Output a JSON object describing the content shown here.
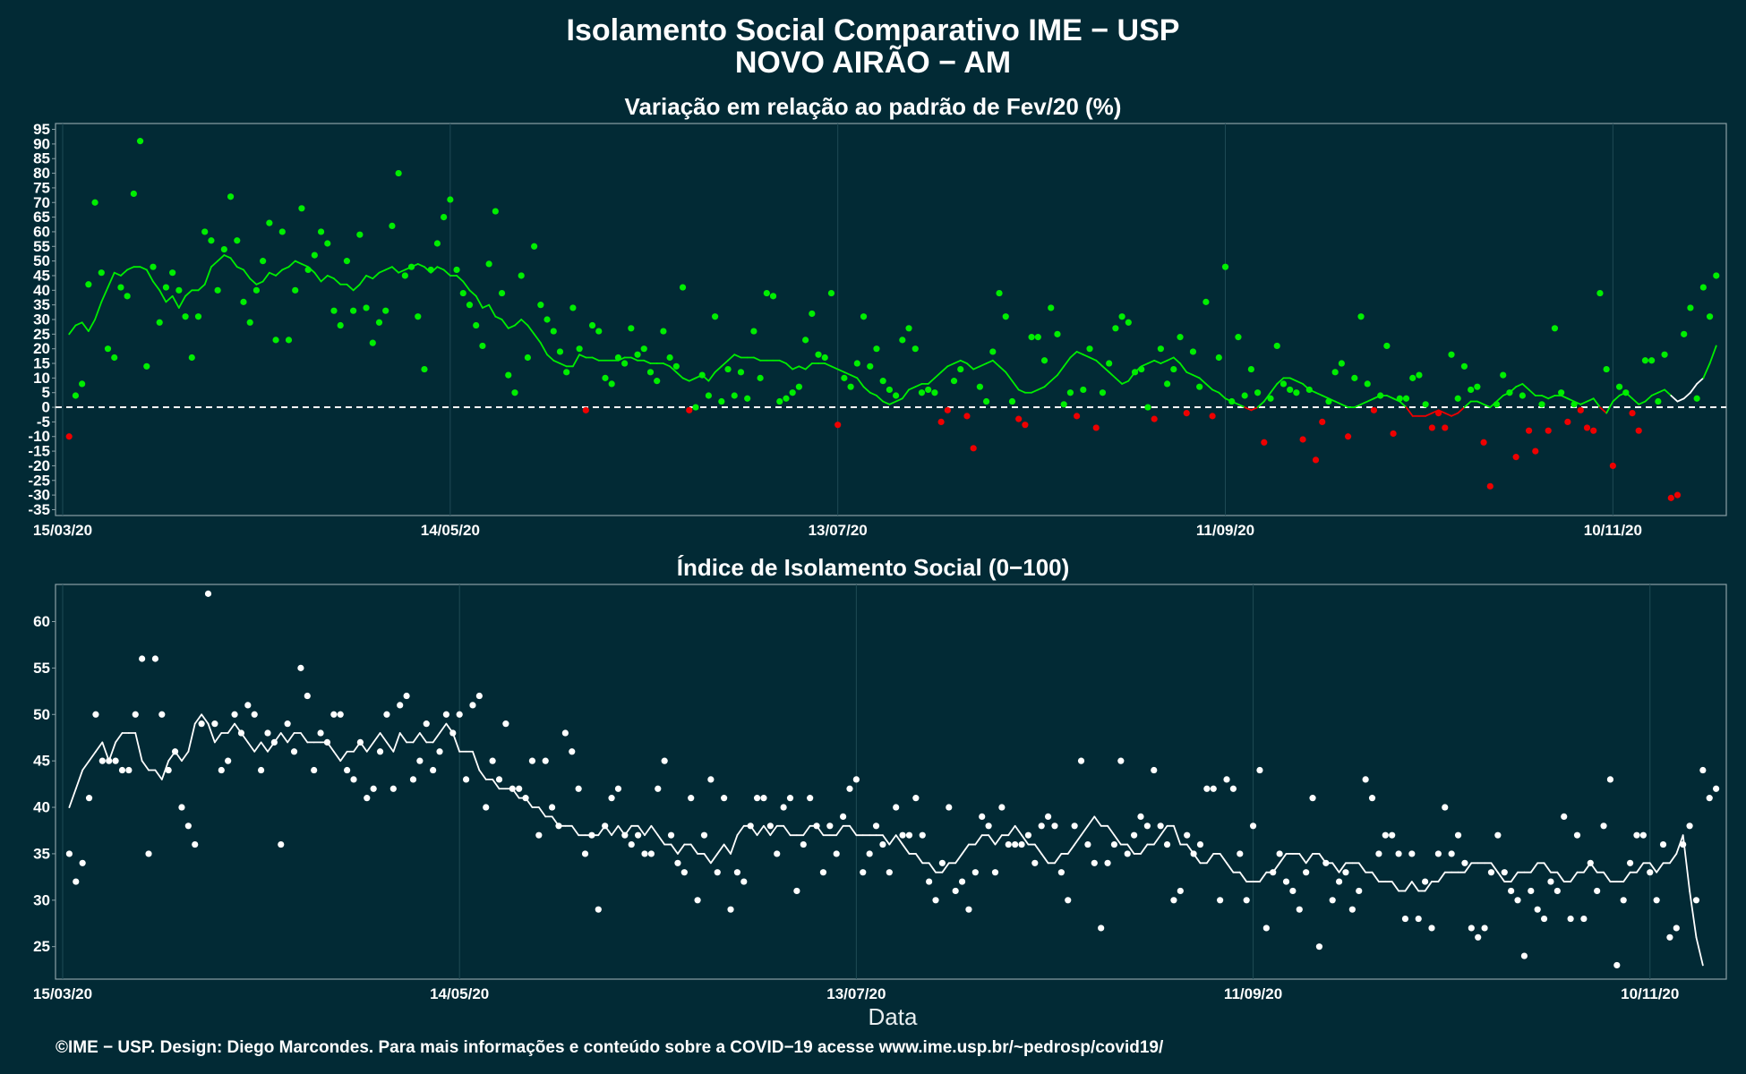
{
  "header": {
    "title_line1": "Isolamento Social Comparativo IME − USP",
    "title_line2": "NOVO AIRÃO − AM"
  },
  "footer": {
    "credit": "©IME − USP. Design: Diego Marcondes. Para mais informações e conteúdo sobre a COVID−19 acesse www.ime.usp.br/~pedrosp/covid19/"
  },
  "colors": {
    "background": "#022a35",
    "positive": "#00ee00",
    "negative": "#ee0000",
    "index": "#ffffff",
    "last_week": "#ffffff"
  },
  "chart_data": [
    {
      "type": "scatter",
      "title": "Variação em relação ao padrão de Fev/20 (%)",
      "xlabel": "",
      "ylabel": "",
      "x_start": "15/03/20",
      "x_ticks": [
        "15/03/20",
        "14/05/20",
        "13/07/20",
        "11/09/20",
        "10/11/20"
      ],
      "y_ticks": [
        95,
        90,
        85,
        80,
        75,
        70,
        65,
        60,
        55,
        50,
        45,
        40,
        35,
        30,
        25,
        20,
        15,
        10,
        5,
        0,
        -5,
        -10,
        -15,
        -20,
        -25,
        -30,
        -35
      ],
      "ylim": [
        -37,
        97
      ],
      "reference_line": 0,
      "series": [
        {
          "kind": "daily points",
          "values": [
            -10,
            4,
            8,
            42,
            70,
            46,
            20,
            17,
            41,
            38,
            73,
            91,
            14,
            48,
            29,
            41,
            46,
            40,
            31,
            17,
            31,
            60,
            57,
            40,
            54,
            72,
            57,
            36,
            29,
            40,
            50,
            63,
            23,
            60,
            23,
            40,
            68,
            47,
            52,
            60,
            56,
            33,
            28,
            50,
            33,
            59,
            34,
            22,
            29,
            33,
            62,
            80,
            45,
            48,
            31,
            13,
            47,
            56,
            65,
            71,
            47,
            39,
            35,
            28,
            21,
            49,
            67,
            39,
            11,
            5,
            45,
            17,
            55,
            35,
            30,
            26,
            19,
            12,
            34,
            20,
            -1,
            28,
            26,
            10,
            8,
            17,
            15,
            27,
            18,
            20,
            12,
            9,
            26,
            17,
            14,
            41,
            -1,
            0,
            11,
            4,
            31,
            2,
            13,
            4,
            12,
            3,
            26,
            10,
            39,
            38,
            2,
            3,
            5,
            7,
            23,
            32,
            18,
            17,
            39,
            -6,
            10,
            7,
            15,
            31,
            14,
            20,
            9,
            6,
            4,
            23,
            27,
            20,
            5,
            6,
            5,
            -5,
            -1,
            9,
            13,
            -3,
            -14,
            7,
            2,
            19,
            39,
            31,
            2,
            -4,
            -6,
            24,
            24,
            16,
            34,
            25,
            1,
            5,
            -3,
            6,
            20,
            -7,
            5,
            15,
            27,
            31,
            29,
            12,
            13,
            0,
            -4,
            20,
            8,
            13,
            24,
            -2,
            19,
            7,
            36,
            -3,
            17,
            48,
            2,
            24,
            4,
            13,
            5,
            -12,
            3,
            21,
            8,
            6,
            5,
            -11,
            6,
            -18,
            -5,
            2,
            12,
            15,
            -10,
            10,
            31,
            8,
            -1,
            4,
            21,
            -9,
            3,
            3,
            10,
            11,
            1,
            -7,
            -2,
            -7,
            18,
            3,
            14,
            6,
            7,
            -12,
            -27,
            1,
            11,
            5,
            -17,
            4,
            -8,
            -15,
            1,
            -8,
            27,
            5,
            -5,
            1,
            -1,
            -7,
            -8,
            39,
            13,
            -20,
            7,
            5,
            -2,
            -8,
            16,
            16,
            2,
            18,
            -31,
            -30,
            25,
            34,
            3,
            41,
            31,
            45
          ]
        },
        {
          "kind": "7-day moving average",
          "values": [
            25,
            28,
            29,
            26,
            30,
            36,
            41,
            46,
            45,
            47,
            48,
            48,
            47,
            43,
            40,
            36,
            38,
            34,
            38,
            40,
            40,
            42,
            48,
            50,
            52,
            51,
            48,
            47,
            44,
            42,
            43,
            46,
            45,
            47,
            48,
            50,
            49,
            48,
            46,
            43,
            45,
            44,
            42,
            42,
            40,
            42,
            45,
            44,
            46,
            47,
            48,
            46,
            47,
            48,
            49,
            48,
            46,
            48,
            47,
            45,
            45,
            43,
            40,
            38,
            34,
            35,
            31,
            30,
            27,
            28,
            30,
            28,
            25,
            22,
            18,
            16,
            15,
            14,
            14,
            18,
            17,
            17,
            16,
            16,
            16,
            16,
            17,
            17,
            16,
            16,
            15,
            15,
            15,
            14,
            12,
            10,
            9,
            10,
            11,
            9,
            12,
            14,
            16,
            18,
            17,
            17,
            17,
            16,
            16,
            16,
            16,
            15,
            13,
            14,
            13,
            15,
            15,
            15,
            14,
            13,
            12,
            11,
            10,
            7,
            5,
            4,
            2,
            1,
            2,
            3,
            6,
            7,
            8,
            8,
            10,
            12,
            14,
            15,
            16,
            15,
            13,
            14,
            15,
            16,
            14,
            12,
            9,
            6,
            5,
            5,
            6,
            7,
            9,
            11,
            14,
            17,
            19,
            18,
            17,
            16,
            14,
            12,
            10,
            8,
            9,
            12,
            14,
            15,
            16,
            15,
            16,
            17,
            15,
            12,
            11,
            10,
            8,
            6,
            5,
            3,
            2,
            1,
            0,
            -1,
            0,
            2,
            5,
            8,
            10,
            10,
            9,
            8,
            6,
            5,
            4,
            3,
            2,
            1,
            0,
            0,
            1,
            2,
            3,
            4,
            4,
            3,
            2,
            0,
            -3,
            -3,
            -3,
            -2,
            -1,
            -2,
            -3,
            -2,
            0,
            2,
            2,
            1,
            0,
            2,
            4,
            5,
            7,
            8,
            6,
            4,
            4,
            3,
            4,
            4,
            3,
            2,
            1,
            2,
            3,
            0,
            -2,
            2,
            4,
            5,
            3,
            1,
            2,
            4,
            5,
            6,
            4,
            2,
            3,
            5,
            8,
            10,
            15,
            21
          ]
        }
      ]
    },
    {
      "type": "scatter",
      "title": "Índice de Isolamento Social (0−100)",
      "xlabel": "Data",
      "ylabel": "",
      "x_start": "15/03/20",
      "x_ticks": [
        "15/03/20",
        "14/05/20",
        "13/07/20",
        "11/09/20",
        "10/11/20"
      ],
      "y_ticks": [
        60,
        55,
        50,
        45,
        40,
        35,
        30,
        25
      ],
      "ylim": [
        21.5,
        64
      ],
      "series": [
        {
          "kind": "daily points",
          "values": [
            35,
            32,
            34,
            41,
            50,
            45,
            45,
            45,
            44,
            44,
            50,
            56,
            35,
            56,
            50,
            44,
            46,
            40,
            38,
            36,
            49,
            63,
            49,
            44,
            45,
            50,
            48,
            51,
            50,
            44,
            48,
            47,
            36,
            49,
            46,
            55,
            52,
            44,
            48,
            47,
            50,
            50,
            44,
            43,
            47,
            41,
            42,
            46,
            50,
            42,
            51,
            52,
            43,
            45,
            49,
            44,
            46,
            50,
            48,
            50,
            43,
            51,
            52,
            40,
            45,
            43,
            49,
            42,
            42,
            41,
            45,
            37,
            45,
            40,
            38,
            48,
            46,
            42,
            35,
            37,
            29,
            38,
            41,
            42,
            37,
            36,
            37,
            35,
            35,
            42,
            45,
            37,
            34,
            33,
            41,
            30,
            37,
            43,
            33,
            41,
            29,
            33,
            32,
            38,
            41,
            41,
            38,
            35,
            40,
            41,
            31,
            36,
            41,
            38,
            33,
            38,
            35,
            39,
            42,
            43,
            33,
            35,
            38,
            36,
            33,
            40,
            37,
            37,
            41,
            37,
            32,
            30,
            34,
            40,
            31,
            32,
            29,
            33,
            39,
            38,
            33,
            40,
            36,
            36,
            36,
            37,
            34,
            38,
            39,
            38,
            33,
            30,
            38,
            45,
            36,
            34,
            27,
            34,
            36,
            45,
            35,
            37,
            39,
            38,
            44,
            38,
            36,
            30,
            31,
            37,
            35,
            36,
            42,
            42,
            30,
            43,
            42,
            35,
            30,
            38,
            44,
            27,
            33,
            35,
            32,
            31,
            29,
            33,
            41,
            25,
            34,
            30,
            32,
            33,
            29,
            31,
            43,
            41,
            35,
            37,
            37,
            35,
            28,
            35,
            28,
            32,
            27,
            35,
            40,
            35,
            37,
            34,
            27,
            26,
            27,
            33,
            37,
            33,
            31,
            30,
            24,
            31,
            29,
            28,
            32,
            31,
            39,
            28,
            37,
            28,
            34,
            31,
            38,
            43,
            23,
            30,
            34,
            37,
            37,
            33,
            30,
            36,
            26,
            27,
            36,
            38,
            30,
            44,
            41,
            42
          ]
        },
        {
          "kind": "7-day moving average",
          "values": [
            40,
            42,
            44,
            45,
            46,
            47,
            45,
            47,
            48,
            48,
            48,
            45,
            44,
            44,
            43,
            45,
            46,
            45,
            46,
            49,
            50,
            49,
            47,
            48,
            48,
            49,
            48,
            47,
            46,
            47,
            46,
            47,
            48,
            47,
            48,
            48,
            47,
            47,
            47,
            47,
            46,
            45,
            46,
            46,
            47,
            46,
            47,
            48,
            47,
            46,
            48,
            47,
            47,
            48,
            47,
            47,
            48,
            49,
            48,
            46,
            46,
            46,
            44,
            43,
            43,
            42,
            42,
            42,
            41,
            41,
            40,
            40,
            39,
            39,
            38,
            38,
            38,
            37,
            37,
            37,
            37,
            38,
            37,
            38,
            37,
            38,
            38,
            37,
            38,
            37,
            36,
            36,
            35,
            36,
            36,
            35,
            35,
            34,
            35,
            36,
            35,
            37,
            38,
            38,
            37,
            38,
            37,
            38,
            38,
            37,
            37,
            37,
            38,
            38,
            37,
            37,
            37,
            38,
            38,
            37,
            37,
            37,
            37,
            37,
            36,
            37,
            36,
            35,
            35,
            34,
            34,
            33,
            33,
            34,
            34,
            35,
            36,
            36,
            37,
            37,
            36,
            37,
            37,
            38,
            37,
            36,
            36,
            35,
            34,
            34,
            35,
            35,
            36,
            37,
            38,
            39,
            38,
            38,
            37,
            36,
            36,
            35,
            35,
            36,
            36,
            37,
            38,
            38,
            36,
            36,
            35,
            34,
            34,
            35,
            35,
            34,
            33,
            33,
            32,
            32,
            32,
            33,
            33,
            34,
            35,
            35,
            35,
            34,
            35,
            35,
            34,
            34,
            33,
            34,
            34,
            34,
            33,
            33,
            32,
            32,
            32,
            31,
            31,
            32,
            31,
            31,
            32,
            32,
            33,
            33,
            33,
            33,
            34,
            34,
            34,
            34,
            33,
            32,
            32,
            33,
            33,
            33,
            34,
            34,
            33,
            33,
            32,
            32,
            33,
            33,
            34,
            33,
            33,
            32,
            32,
            32,
            33,
            33,
            34,
            34,
            33,
            34,
            34,
            35,
            37,
            31,
            26,
            23
          ]
        }
      ]
    }
  ]
}
